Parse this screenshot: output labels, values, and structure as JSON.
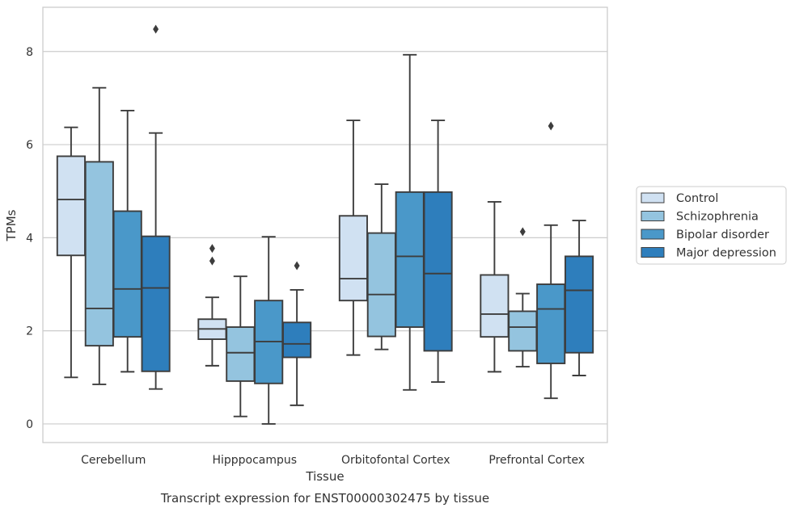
{
  "caption": "Transcript expression for ENST00000302475 by tissue",
  "chart_data": {
    "type": "boxplot",
    "xlabel": "Tissue",
    "ylabel": "TPMs",
    "ylim": [
      -0.4,
      8.95
    ],
    "yticks": [
      0,
      2,
      4,
      6,
      8
    ],
    "grid": "horizontal",
    "legend_position": "right",
    "categories": [
      "Cerebellum",
      "Hipppocampus",
      "Orbitofontal Cortex",
      "Prefrontal Cortex"
    ],
    "series": [
      {
        "name": "Control",
        "color": "#d0e1f2",
        "boxes": [
          {
            "whisker_low": 1.0,
            "q1": 3.62,
            "median": 4.82,
            "q3": 5.75,
            "whisker_high": 6.37,
            "outliers": []
          },
          {
            "whisker_low": 1.25,
            "q1": 1.82,
            "median": 2.04,
            "q3": 2.25,
            "whisker_high": 2.72,
            "outliers": [
              3.5,
              3.77
            ]
          },
          {
            "whisker_low": 1.48,
            "q1": 2.65,
            "median": 3.12,
            "q3": 4.47,
            "whisker_high": 6.52,
            "outliers": []
          },
          {
            "whisker_low": 1.12,
            "q1": 1.87,
            "median": 2.36,
            "q3": 3.2,
            "whisker_high": 4.77,
            "outliers": []
          }
        ]
      },
      {
        "name": "Schizophrenia",
        "color": "#94c4df",
        "boxes": [
          {
            "whisker_low": 0.85,
            "q1": 1.68,
            "median": 2.48,
            "q3": 5.63,
            "whisker_high": 7.22,
            "outliers": []
          },
          {
            "whisker_low": 0.16,
            "q1": 0.92,
            "median": 1.53,
            "q3": 2.08,
            "whisker_high": 3.17,
            "outliers": []
          },
          {
            "whisker_low": 1.6,
            "q1": 1.88,
            "median": 2.78,
            "q3": 4.1,
            "whisker_high": 5.15,
            "outliers": []
          },
          {
            "whisker_low": 1.23,
            "q1": 1.57,
            "median": 2.08,
            "q3": 2.42,
            "whisker_high": 2.8,
            "outliers": [
              4.13
            ]
          }
        ]
      },
      {
        "name": "Bipolar disorder",
        "color": "#4a98c9",
        "boxes": [
          {
            "whisker_low": 1.12,
            "q1": 1.87,
            "median": 2.9,
            "q3": 4.57,
            "whisker_high": 6.73,
            "outliers": []
          },
          {
            "whisker_low": 0.0,
            "q1": 0.87,
            "median": 1.77,
            "q3": 2.65,
            "whisker_high": 4.02,
            "outliers": []
          },
          {
            "whisker_low": 0.73,
            "q1": 2.08,
            "median": 3.6,
            "q3": 4.98,
            "whisker_high": 7.93,
            "outliers": []
          },
          {
            "whisker_low": 0.55,
            "q1": 1.3,
            "median": 2.47,
            "q3": 3.0,
            "whisker_high": 4.27,
            "outliers": [
              6.4
            ]
          }
        ]
      },
      {
        "name": "Major depression",
        "color": "#2e7ebc",
        "boxes": [
          {
            "whisker_low": 0.75,
            "q1": 1.13,
            "median": 2.92,
            "q3": 4.03,
            "whisker_high": 6.25,
            "outliers": [
              8.48
            ]
          },
          {
            "whisker_low": 0.4,
            "q1": 1.43,
            "median": 1.72,
            "q3": 2.18,
            "whisker_high": 2.88,
            "outliers": [
              3.4
            ]
          },
          {
            "whisker_low": 0.9,
            "q1": 1.57,
            "median": 3.23,
            "q3": 4.98,
            "whisker_high": 6.52,
            "outliers": []
          },
          {
            "whisker_low": 1.04,
            "q1": 1.53,
            "median": 2.87,
            "q3": 3.6,
            "whisker_high": 4.37,
            "outliers": []
          }
        ]
      }
    ]
  }
}
